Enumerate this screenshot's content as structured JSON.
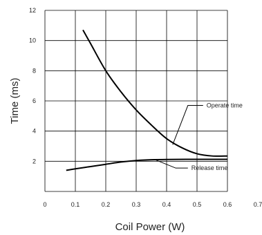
{
  "chart_data": {
    "type": "line",
    "title": "",
    "xlabel": "Coil Power (W)",
    "ylabel": "Time (ms)",
    "xlim": [
      0,
      0.7
    ],
    "ylim": [
      0,
      12
    ],
    "grid": true,
    "x_ticks": [
      "0",
      "0.1",
      "0.2",
      "0.3",
      "0.4",
      "0.5",
      "0.6",
      "0.7"
    ],
    "y_ticks": [
      "2",
      "4",
      "6",
      "8",
      "10",
      "12"
    ],
    "series": [
      {
        "name": "Operate time",
        "x": [
          0.125,
          0.15,
          0.2,
          0.25,
          0.3,
          0.35,
          0.4,
          0.45,
          0.5,
          0.55,
          0.6
        ],
        "y": [
          10.7,
          9.8,
          8.0,
          6.6,
          5.4,
          4.4,
          3.5,
          2.9,
          2.5,
          2.35,
          2.35
        ]
      },
      {
        "name": "Release time",
        "x": [
          0.07,
          0.1,
          0.15,
          0.2,
          0.25,
          0.3,
          0.35,
          0.4,
          0.5,
          0.6
        ],
        "y": [
          1.4,
          1.5,
          1.65,
          1.8,
          1.95,
          2.05,
          2.1,
          2.12,
          2.13,
          2.13
        ]
      }
    ],
    "annotations": [
      {
        "text": "Operate time",
        "series": 0,
        "anchor_x": 0.42,
        "anchor_y": 3.1,
        "elbow_x": 0.47,
        "elbow_y": 5.7,
        "end_x": 0.52,
        "end_y": 5.7
      },
      {
        "text": "Release time",
        "series": 1,
        "anchor_x": 0.36,
        "anchor_y": 2.12,
        "elbow_x": 0.43,
        "elbow_y": 1.55,
        "end_x": 0.47,
        "end_y": 1.55
      }
    ]
  }
}
